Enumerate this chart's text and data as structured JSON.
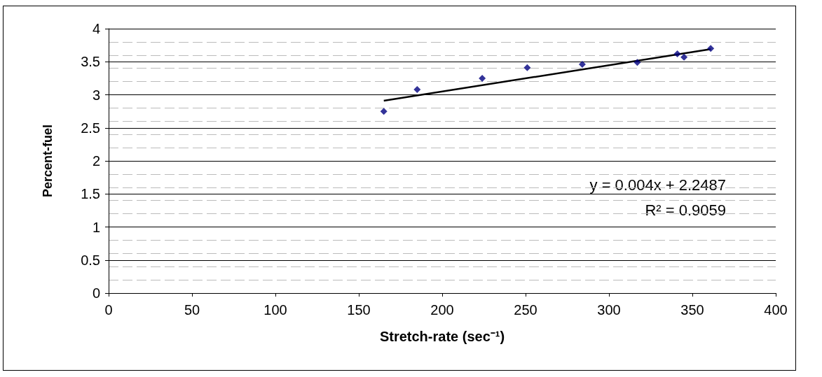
{
  "chart_data": {
    "type": "scatter",
    "xlabel": "Stretch-rate (sec⁻¹)",
    "ylabel": "Percent-fuel",
    "xlim": [
      0,
      400
    ],
    "xticks": [
      0,
      50,
      100,
      150,
      200,
      250,
      300,
      350,
      400
    ],
    "ylim": [
      0,
      4
    ],
    "yticks": [
      0,
      0.5,
      1,
      1.5,
      2,
      2.5,
      3,
      3.5,
      4
    ],
    "grid": "y",
    "series": [
      {
        "type": "scatter",
        "color": "#000080",
        "marker": "diamond",
        "x": [
          165,
          185,
          224,
          251,
          284,
          317,
          341,
          345,
          361
        ],
        "values": [
          2.75,
          3.08,
          3.25,
          3.41,
          3.46,
          3.49,
          3.62,
          3.57,
          3.7
        ]
      },
      {
        "type": "line",
        "color": "#000000",
        "marker": "none",
        "line_style": "solid",
        "x": [
          165,
          361
        ],
        "values": [
          2.91,
          3.69
        ]
      }
    ],
    "annotations": [
      "y = 0.004x + 2.2487",
      "R² = 0.9059"
    ]
  }
}
